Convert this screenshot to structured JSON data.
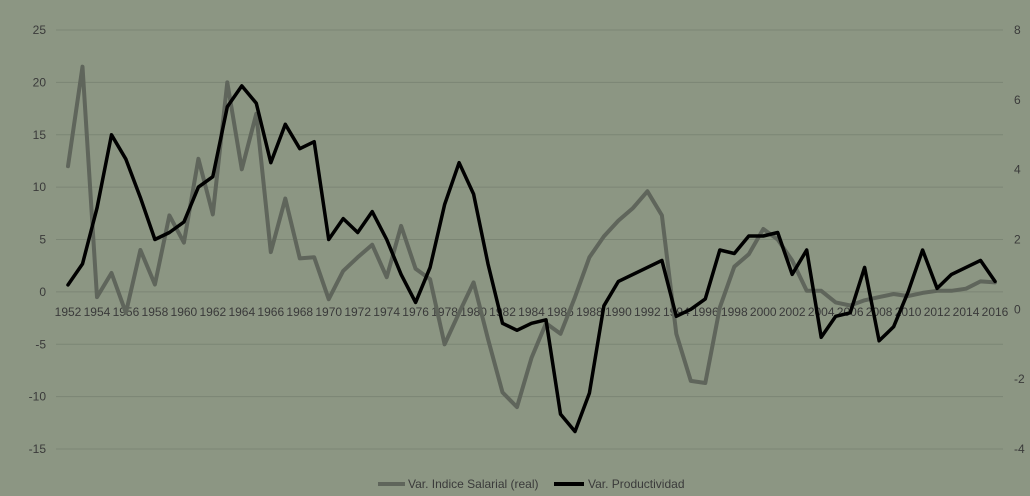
{
  "colors": {
    "background": "#8c9683",
    "grid": "#7b8574",
    "series_wage": "#5f655b",
    "series_productivity": "#000000",
    "text": "#3a3a3a"
  },
  "chart_data": {
    "type": "line",
    "title": "",
    "xlabel": "",
    "ylabel": "",
    "y2label": "",
    "grid": true,
    "legend_position": "bottom",
    "ylim": [
      -15,
      25
    ],
    "y2lim": [
      -4,
      8
    ],
    "yticks": [
      25,
      20,
      15,
      10,
      5,
      0,
      -5,
      -10,
      -15
    ],
    "y2ticks": [
      8,
      6,
      4,
      2,
      0,
      -2,
      -4
    ],
    "xtick_labels": [
      "1952",
      "1954",
      "1956",
      "1958",
      "1960",
      "1962",
      "1964",
      "1966",
      "1968",
      "1970",
      "1972",
      "1974",
      "1976",
      "1978",
      "1980",
      "1982",
      "1984",
      "1986",
      "1988",
      "1990",
      "1992",
      "1994",
      "1996",
      "1998",
      "2000",
      "2002",
      "2004",
      "2006",
      "2008",
      "2010",
      "2012",
      "2014",
      "2016"
    ],
    "x": [
      1952,
      1953,
      1954,
      1955,
      1956,
      1957,
      1958,
      1959,
      1960,
      1961,
      1962,
      1963,
      1964,
      1965,
      1966,
      1967,
      1968,
      1969,
      1970,
      1971,
      1972,
      1973,
      1974,
      1975,
      1976,
      1977,
      1978,
      1979,
      1980,
      1981,
      1982,
      1983,
      1984,
      1985,
      1986,
      1987,
      1988,
      1989,
      1990,
      1991,
      1992,
      1993,
      1994,
      1995,
      1996,
      1997,
      1998,
      1999,
      2000,
      2001,
      2002,
      2003,
      2004,
      2005,
      2006,
      2007,
      2008,
      2009,
      2010,
      2011,
      2012,
      2013,
      2014,
      2015,
      2016
    ],
    "series": [
      {
        "name": "Var. Indice Salarial (real)",
        "axis": "left",
        "values": [
          12.0,
          21.5,
          -0.5,
          1.8,
          -2.0,
          4.0,
          0.7,
          7.3,
          4.7,
          12.7,
          7.4,
          20.0,
          11.7,
          17.0,
          3.8,
          8.9,
          3.2,
          3.3,
          -0.7,
          2.0,
          3.3,
          4.5,
          1.4,
          6.3,
          2.2,
          1.2,
          -5.0,
          -2.0,
          0.9,
          -4.5,
          -9.6,
          -11.0,
          -6.3,
          -3.0,
          -4.0,
          -0.5,
          3.3,
          5.3,
          6.8,
          8.0,
          9.6,
          7.3,
          -4.0,
          -8.5,
          -8.7,
          -1.5,
          2.4,
          3.6,
          6.0,
          5.0,
          3.0,
          0.1,
          0.1,
          -1.0,
          -1.3,
          -0.8,
          -0.5,
          -0.2,
          -0.4,
          -0.1,
          0.1,
          0.1,
          0.3,
          1.0,
          0.9
        ]
      },
      {
        "name": "Var. Productividad",
        "axis": "right",
        "values": [
          0.7,
          1.3,
          2.9,
          5.0,
          4.3,
          3.2,
          2.0,
          2.2,
          2.5,
          3.5,
          3.8,
          5.8,
          6.4,
          5.9,
          4.2,
          5.3,
          4.6,
          4.8,
          2.0,
          2.6,
          2.2,
          2.8,
          2.0,
          1.0,
          0.2,
          1.2,
          3.0,
          4.2,
          3.3,
          1.3,
          -0.4,
          -0.6,
          -0.4,
          -0.3,
          -3.0,
          -3.5,
          -2.4,
          0.1,
          0.8,
          1.0,
          1.2,
          1.4,
          -0.2,
          0.0,
          0.3,
          1.7,
          1.6,
          2.1,
          2.1,
          2.2,
          1.0,
          1.7,
          -0.8,
          -0.2,
          -0.1,
          1.2,
          -0.9,
          -0.5,
          0.5,
          1.7,
          0.6,
          1.0,
          1.2,
          1.4,
          0.8
        ]
      }
    ]
  }
}
